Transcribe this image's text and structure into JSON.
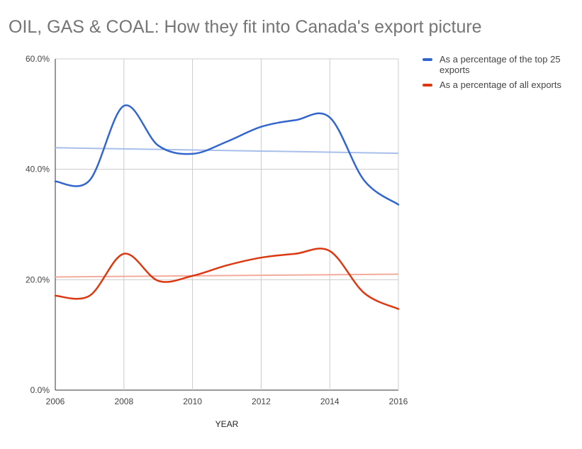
{
  "chart_data": {
    "type": "line",
    "title": "OIL, GAS & COAL: How they fit into Canada's export picture",
    "xlabel": "YEAR",
    "ylabel": "",
    "x": [
      2006,
      2007,
      2008,
      2009,
      2010,
      2011,
      2012,
      2013,
      2014,
      2015,
      2016
    ],
    "x_ticks": [
      "2006",
      "2008",
      "2010",
      "2012",
      "2014",
      "2016"
    ],
    "y_ticks": [
      "0.0%",
      "20.0%",
      "40.0%",
      "60.0%"
    ],
    "ylim": [
      0,
      60
    ],
    "grid": true,
    "legend_position": "right",
    "series": [
      {
        "name": "As a percentage of the top 25 exports",
        "color": "#3366cc",
        "trendline_color": "#a8bfeb",
        "values": [
          37.8,
          38.0,
          51.5,
          44.3,
          42.8,
          45.0,
          47.7,
          48.9,
          49.4,
          38.0,
          33.6
        ],
        "trendline": [
          43.9,
          42.9
        ]
      },
      {
        "name": "As a percentage of all exports",
        "color": "#dc3912",
        "trendline_color": "#f2ab9d",
        "values": [
          17.1,
          17.1,
          24.7,
          19.8,
          20.7,
          22.6,
          24.0,
          24.7,
          25.2,
          17.6,
          14.7
        ],
        "trendline": [
          20.5,
          21.0
        ]
      }
    ]
  }
}
